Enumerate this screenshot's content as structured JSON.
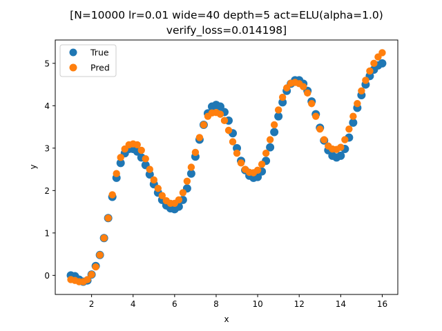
{
  "chart_data": {
    "type": "scatter",
    "title_lines": [
      "[N=10000 lr=0.01 wide=40 depth=5 act=ELU(alpha=1.0)",
      "verify_loss=0.014198]"
    ],
    "xlabel": "x",
    "ylabel": "y",
    "xlim": [
      0.25,
      16.75
    ],
    "ylim": [
      -0.45,
      5.55
    ],
    "xticks": [
      2,
      4,
      6,
      8,
      10,
      12,
      14,
      16
    ],
    "yticks": [
      0,
      1,
      2,
      3,
      4,
      5
    ],
    "grid": false,
    "legend_position": "top-left",
    "series": [
      {
        "name": "True",
        "color": "#1f77b4",
        "x": [
          1.0,
          1.2,
          1.4,
          1.6,
          1.8,
          2.0,
          2.2,
          2.4,
          2.6,
          2.8,
          3.0,
          3.2,
          3.4,
          3.6,
          3.8,
          4.0,
          4.2,
          4.4,
          4.6,
          4.8,
          5.0,
          5.2,
          5.4,
          5.6,
          5.8,
          6.0,
          6.2,
          6.4,
          6.6,
          6.8,
          7.0,
          7.2,
          7.4,
          7.6,
          7.8,
          8.0,
          8.2,
          8.4,
          8.6,
          8.8,
          9.0,
          9.2,
          9.4,
          9.6,
          9.8,
          10.0,
          10.2,
          10.4,
          10.6,
          10.8,
          11.0,
          11.2,
          11.4,
          11.6,
          11.8,
          12.0,
          12.2,
          12.4,
          12.6,
          12.8,
          13.0,
          13.2,
          13.4,
          13.6,
          13.8,
          14.0,
          14.2,
          14.4,
          14.6,
          14.8,
          15.0,
          15.2,
          15.4,
          15.6,
          15.8,
          16.0
        ],
        "y": [
          0.0,
          -0.02,
          -0.1,
          -0.15,
          -0.12,
          0.02,
          0.22,
          0.48,
          0.88,
          1.35,
          1.85,
          2.3,
          2.65,
          2.88,
          2.98,
          2.98,
          2.92,
          2.78,
          2.6,
          2.38,
          2.15,
          1.95,
          1.78,
          1.65,
          1.58,
          1.56,
          1.62,
          1.78,
          2.05,
          2.4,
          2.8,
          3.2,
          3.55,
          3.82,
          3.98,
          4.02,
          3.98,
          3.85,
          3.65,
          3.35,
          3.0,
          2.7,
          2.48,
          2.35,
          2.3,
          2.32,
          2.45,
          2.7,
          3.02,
          3.38,
          3.75,
          4.08,
          4.35,
          4.52,
          4.6,
          4.6,
          4.52,
          4.35,
          4.1,
          3.8,
          3.48,
          3.18,
          2.95,
          2.82,
          2.78,
          2.82,
          2.98,
          3.25,
          3.6,
          3.95,
          4.25,
          4.5,
          4.7,
          4.85,
          4.95,
          5.0
        ]
      },
      {
        "name": "Pred",
        "color": "#ff7f0e",
        "x": [
          1.0,
          1.2,
          1.4,
          1.6,
          1.8,
          2.0,
          2.2,
          2.4,
          2.6,
          2.8,
          3.0,
          3.2,
          3.4,
          3.6,
          3.8,
          4.0,
          4.2,
          4.4,
          4.6,
          4.8,
          5.0,
          5.2,
          5.4,
          5.6,
          5.8,
          6.0,
          6.2,
          6.4,
          6.6,
          6.8,
          7.0,
          7.2,
          7.4,
          7.6,
          7.8,
          8.0,
          8.2,
          8.4,
          8.6,
          8.8,
          9.0,
          9.2,
          9.4,
          9.6,
          9.8,
          10.0,
          10.2,
          10.4,
          10.6,
          10.8,
          11.0,
          11.2,
          11.4,
          11.6,
          11.8,
          12.0,
          12.2,
          12.4,
          12.6,
          12.8,
          13.0,
          13.2,
          13.4,
          13.6,
          13.8,
          14.0,
          14.2,
          14.4,
          14.6,
          14.8,
          15.0,
          15.2,
          15.4,
          15.6,
          15.8,
          16.0
        ],
        "y": [
          -0.1,
          -0.12,
          -0.15,
          -0.15,
          -0.1,
          0.02,
          0.2,
          0.48,
          0.88,
          1.35,
          1.9,
          2.4,
          2.78,
          2.98,
          3.08,
          3.1,
          3.08,
          2.95,
          2.75,
          2.5,
          2.25,
          2.05,
          1.88,
          1.76,
          1.7,
          1.7,
          1.78,
          1.95,
          2.22,
          2.55,
          2.9,
          3.25,
          3.55,
          3.75,
          3.83,
          3.84,
          3.8,
          3.65,
          3.42,
          3.15,
          2.88,
          2.65,
          2.5,
          2.43,
          2.42,
          2.48,
          2.62,
          2.88,
          3.2,
          3.55,
          3.9,
          4.2,
          4.42,
          4.53,
          4.55,
          4.52,
          4.45,
          4.3,
          4.05,
          3.75,
          3.45,
          3.2,
          3.05,
          2.98,
          2.97,
          3.02,
          3.2,
          3.45,
          3.75,
          4.05,
          4.35,
          4.6,
          4.82,
          5.0,
          5.15,
          5.25
        ]
      }
    ]
  }
}
